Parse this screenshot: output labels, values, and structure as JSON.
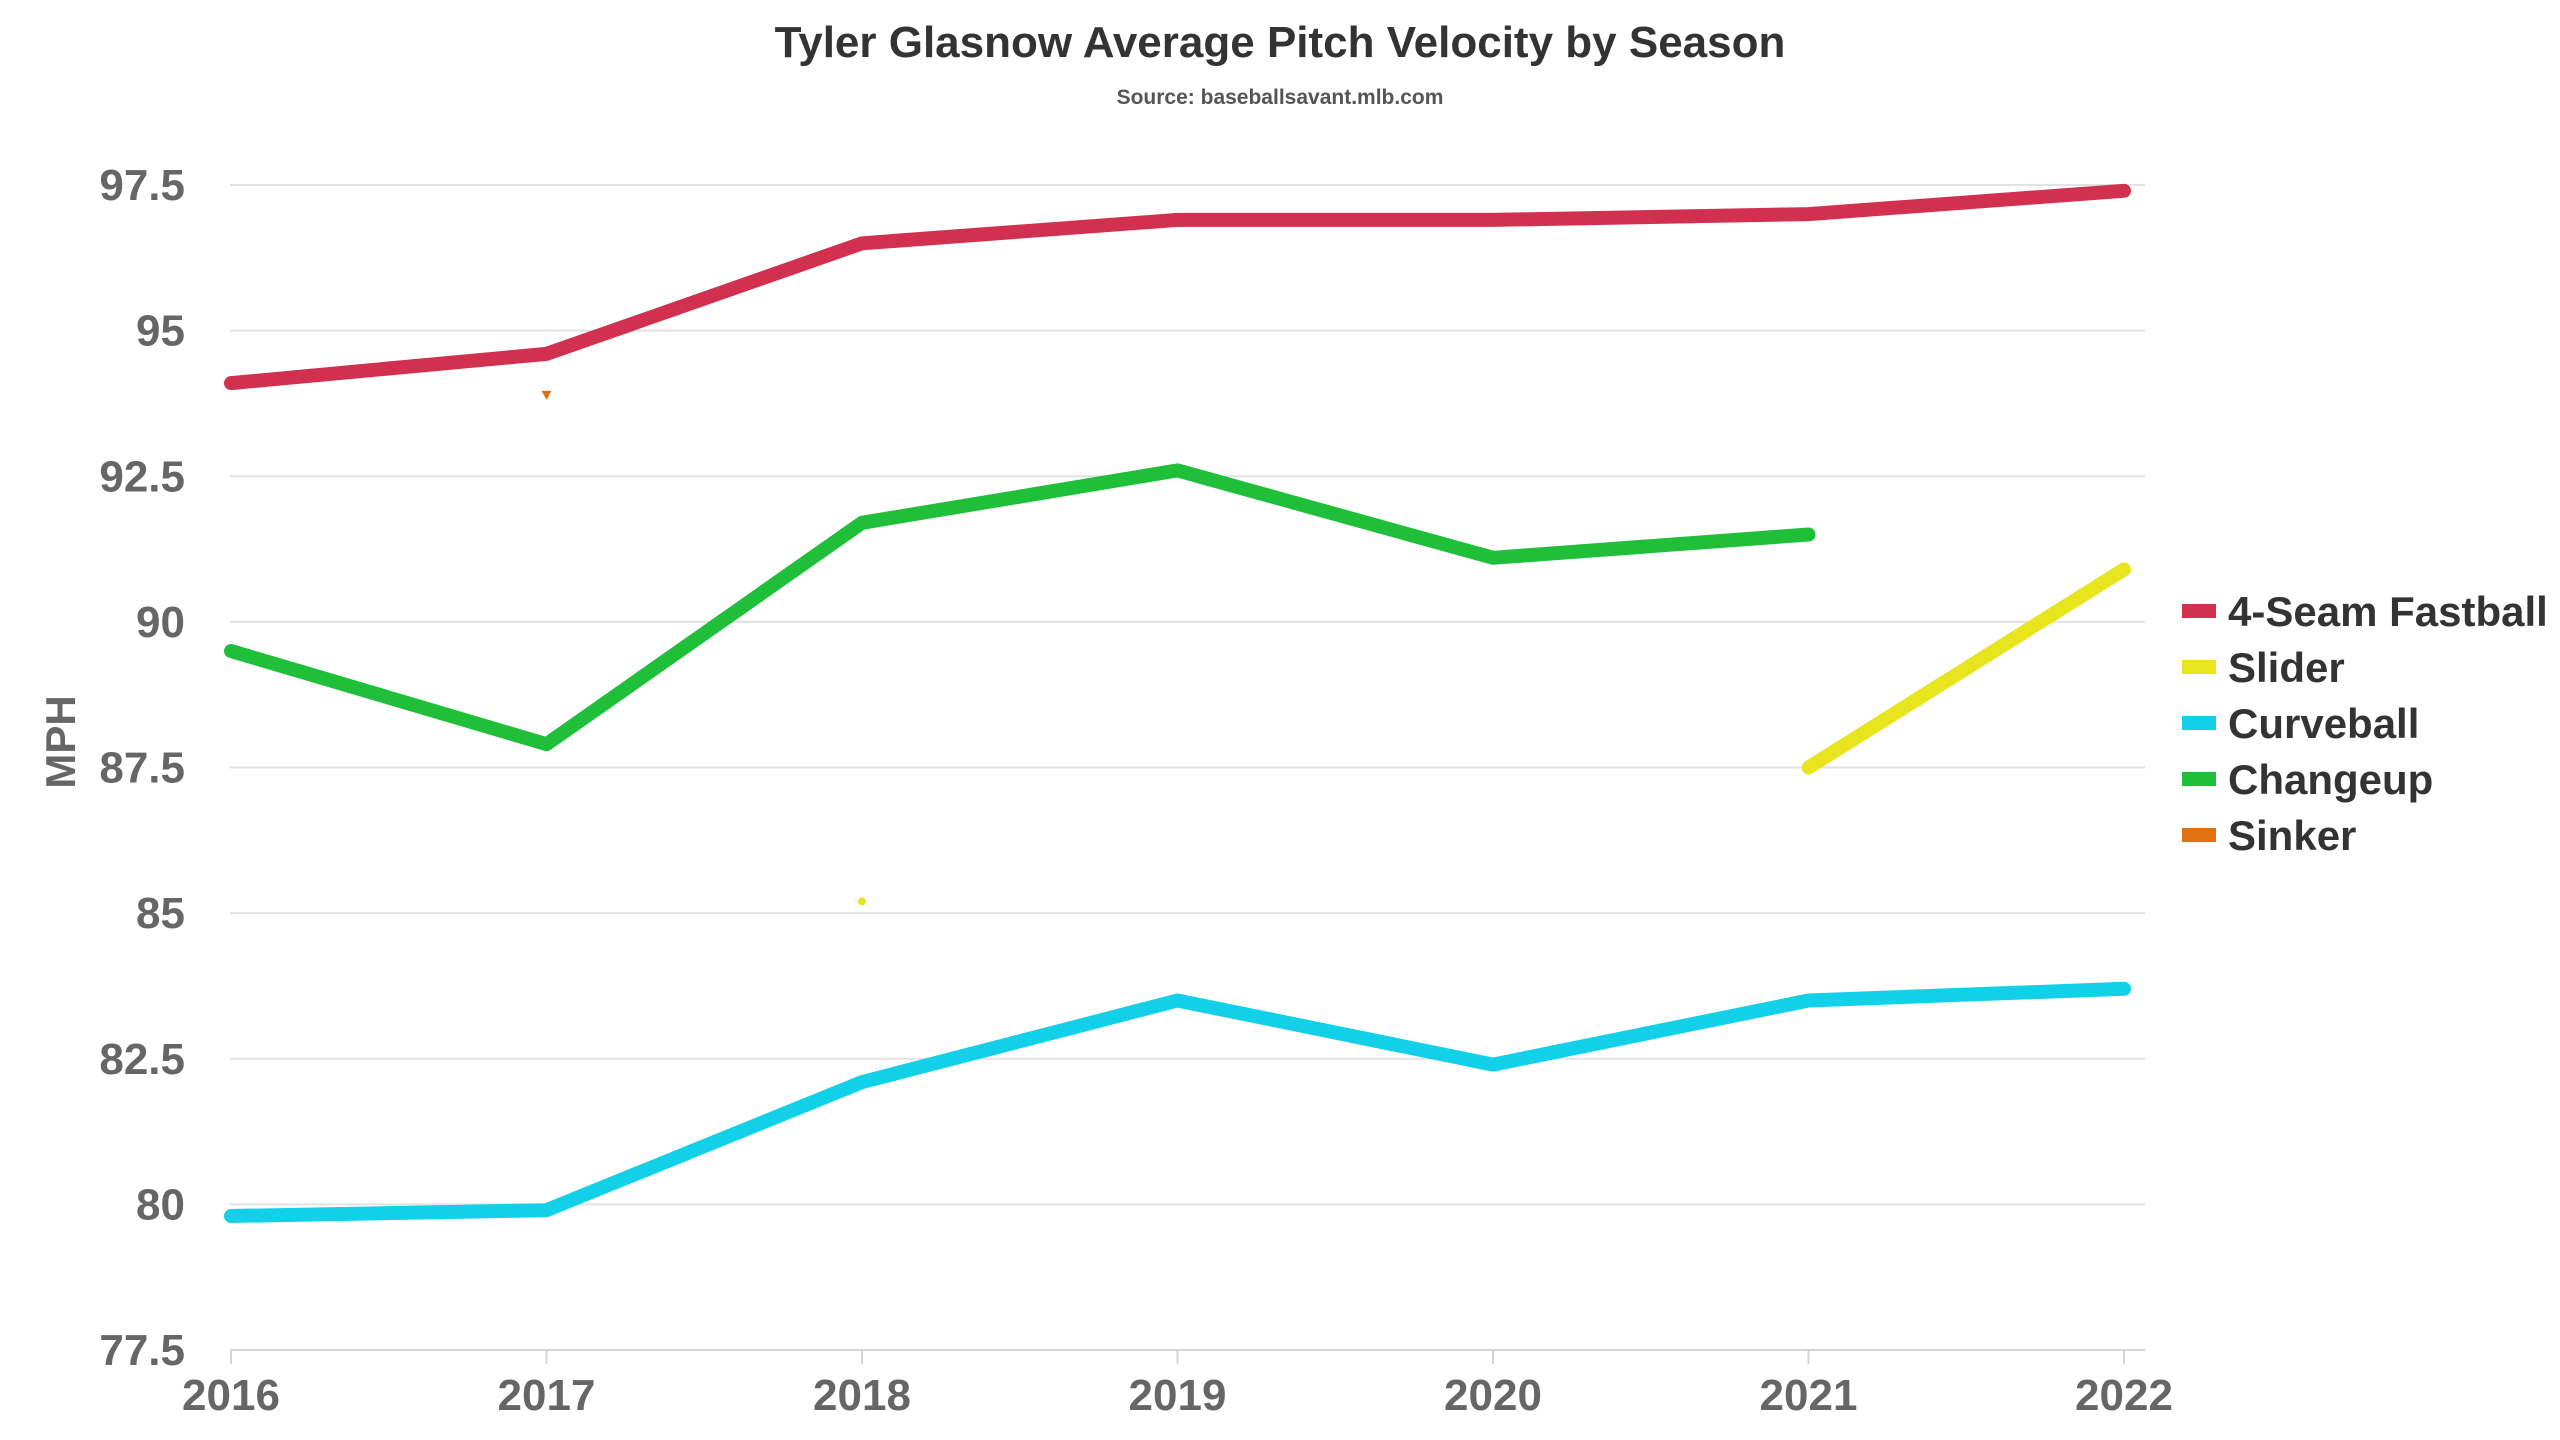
{
  "chart_data": {
    "type": "line",
    "title": "Tyler Glasnow Average Pitch Velocity by Season",
    "subtitle": "Source: baseballsavant.mlb.com",
    "xlabel": "",
    "ylabel": "MPH",
    "x": [
      "2016",
      "2017",
      "2018",
      "2019",
      "2020",
      "2021",
      "2022"
    ],
    "ylim": [
      77.5,
      97.5
    ],
    "yticks": [
      "97.5",
      "95",
      "92.5",
      "90",
      "87.5",
      "85",
      "82.5",
      "80",
      "77.5"
    ],
    "grid": "horizontal",
    "legend_position": "right",
    "series": [
      {
        "name": "4-Seam Fastball",
        "color": "#d1304f",
        "values": [
          94.1,
          94.6,
          96.5,
          96.9,
          96.9,
          97.0,
          97.4
        ]
      },
      {
        "name": "Slider",
        "color": "#e8e41e",
        "values": [
          null,
          null,
          85.2,
          null,
          null,
          87.5,
          90.9
        ]
      },
      {
        "name": "Curveball",
        "color": "#12d0e8",
        "values": [
          79.8,
          79.9,
          82.1,
          83.5,
          82.4,
          83.5,
          83.7
        ]
      },
      {
        "name": "Changeup",
        "color": "#1fbf3a",
        "values": [
          89.5,
          87.9,
          91.7,
          92.6,
          91.1,
          91.5,
          null
        ]
      },
      {
        "name": "Sinker",
        "color": "#e07010",
        "values": [
          null,
          93.9,
          null,
          null,
          null,
          null,
          null
        ]
      }
    ]
  }
}
